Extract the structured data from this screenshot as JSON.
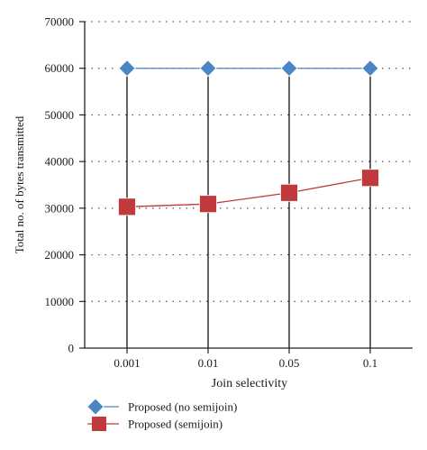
{
  "chart_data": {
    "type": "line",
    "title": "",
    "xlabel": "Join selectivity",
    "ylabel": "Total no. of bytes transmitted",
    "categories": [
      "0.001",
      "0.01",
      "0.05",
      "0.1"
    ],
    "ylim": [
      0,
      70000
    ],
    "yticks": [
      0,
      10000,
      20000,
      30000,
      40000,
      50000,
      60000,
      70000
    ],
    "grid": "horizontal-dotted",
    "legend_position": "bottom",
    "series": [
      {
        "name": "Proposed (no semijoin)",
        "values": [
          60000,
          60000,
          60000,
          60000
        ],
        "color": "#4a86c5",
        "marker": "diamond"
      },
      {
        "name": "Proposed (semijoin)",
        "values": [
          30300,
          30900,
          33300,
          36500
        ],
        "color": "#c0393b",
        "marker": "square"
      }
    ]
  }
}
